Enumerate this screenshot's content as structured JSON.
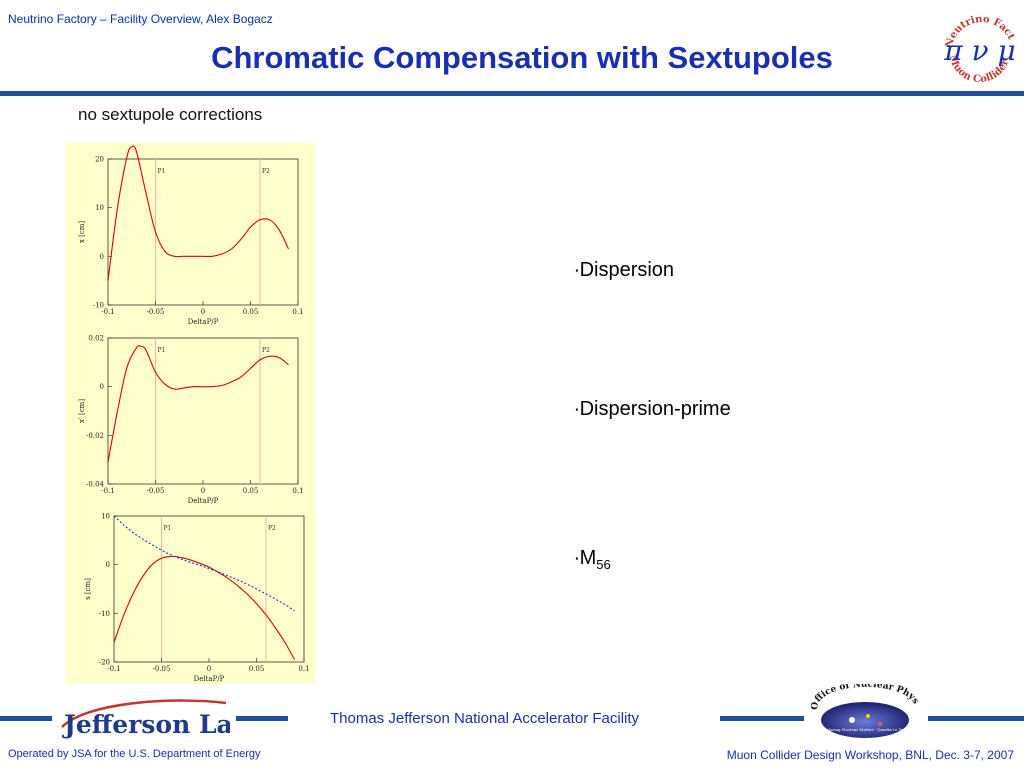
{
  "header": {
    "subtitle": "Neutrino Factory – Facility Overview, Alex Bogacz",
    "title": "Chromatic Compensation with Sextupoles"
  },
  "caption": "no sextupole corrections",
  "plots": [
    {
      "ylabel": "x [cm]",
      "xlabel": "DeltaP/P",
      "xticks": [
        "-0.1",
        "-0.05",
        "0",
        "0.05",
        "0.1"
      ],
      "yticks": [
        "20",
        "10",
        "0",
        "-10"
      ],
      "markers": [
        "P1",
        "P2"
      ]
    },
    {
      "ylabel": "x' [cm]",
      "xlabel": "DeltaP/P",
      "xticks": [
        "-0.1",
        "-0.05",
        "0",
        "0.05",
        "0.1"
      ],
      "yticks": [
        "0.02",
        "0",
        "-0.02",
        "-0.04"
      ],
      "markers": [
        "P1",
        "P2"
      ]
    },
    {
      "ylabel": "s [cm]",
      "xlabel": "DeltaP/P",
      "xticks": [
        "-0.1",
        "-0.05",
        "0",
        "0.05",
        "0.1"
      ],
      "yticks": [
        "10",
        "0",
        "-10",
        "-20"
      ],
      "markers": [
        "P1",
        "P2"
      ]
    }
  ],
  "bullets": {
    "dispersion": "Dispersion",
    "dispersion_prime": "Dispersion-prime",
    "m56_main": "M",
    "m56_sub": "56"
  },
  "logos": {
    "nf_top": "Neutrino Factory",
    "nf_bottom": "Muon Collider",
    "nf_symbols": "π ν μ",
    "jlab": "Jefferson Lab",
    "onp": "Office of Nuclear Physics",
    "onp_tag": "Exploring Nuclear Matter - Quarks to Stars"
  },
  "footer": {
    "center": "Thomas Jefferson National Accelerator Facility",
    "left": "Operated by JSA for the U.S. Department of Energy",
    "right": "Muon Collider Design Workshop, BNL, Dec. 3-7, 2007"
  },
  "colors": {
    "title": "#1a2fb0",
    "rule": "#1f4f9a",
    "curve": "#dd0000",
    "panel_bg": "#ffffcc"
  },
  "chart_data": [
    {
      "type": "line",
      "xlabel": "DeltaP/P",
      "ylabel": "x [cm]",
      "xlim": [
        -0.1,
        0.1
      ],
      "ylim": [
        -10,
        20
      ],
      "x": [
        -0.1,
        -0.09,
        -0.08,
        -0.075,
        -0.07,
        -0.06,
        -0.05,
        -0.04,
        -0.03,
        -0.02,
        -0.01,
        0.0,
        0.01,
        0.02,
        0.03,
        0.04,
        0.05,
        0.06,
        0.07,
        0.08,
        0.09
      ],
      "series": [
        {
          "values": [
            -5,
            10,
            20.5,
            22.5,
            21.5,
            13,
            5,
            1,
            0,
            0,
            0,
            0,
            0,
            0.5,
            1.5,
            3.5,
            6,
            7.5,
            7.5,
            5.5,
            1.5
          ]
        }
      ],
      "vlines": [
        {
          "label": "P1",
          "x": -0.05
        },
        {
          "label": "P2",
          "x": 0.06
        }
      ]
    },
    {
      "type": "line",
      "xlabel": "DeltaP/P",
      "ylabel": "x' [cm]",
      "xlim": [
        -0.1,
        0.1
      ],
      "ylim": [
        -0.04,
        0.02
      ],
      "x": [
        -0.1,
        -0.09,
        -0.08,
        -0.07,
        -0.065,
        -0.06,
        -0.05,
        -0.04,
        -0.03,
        -0.02,
        -0.01,
        0.0,
        0.01,
        0.02,
        0.03,
        0.04,
        0.05,
        0.06,
        0.07,
        0.08,
        0.09
      ],
      "series": [
        {
          "values": [
            -0.031,
            -0.01,
            0.008,
            0.016,
            0.0165,
            0.015,
            0.006,
            0.001,
            -0.001,
            -0.0005,
            0,
            0,
            0,
            0.0005,
            0.002,
            0.004,
            0.0075,
            0.011,
            0.0125,
            0.012,
            0.009
          ]
        }
      ],
      "vlines": [
        {
          "label": "P1",
          "x": -0.05
        },
        {
          "label": "P2",
          "x": 0.06
        }
      ]
    },
    {
      "type": "line",
      "xlabel": "DeltaP/P",
      "ylabel": "s [cm]",
      "xlim": [
        -0.1,
        0.1
      ],
      "ylim": [
        -20,
        10
      ],
      "x": [
        -0.1,
        -0.09,
        -0.08,
        -0.07,
        -0.06,
        -0.05,
        -0.04,
        -0.03,
        -0.02,
        -0.01,
        0.0,
        0.01,
        0.02,
        0.03,
        0.04,
        0.05,
        0.06,
        0.07,
        0.08,
        0.09
      ],
      "series": [
        {
          "values": [
            -16,
            -10.5,
            -6,
            -2.5,
            0,
            1.3,
            1.7,
            1.5,
            1.0,
            0.3,
            -0.5,
            -1.6,
            -2.8,
            -4.3,
            -6,
            -8,
            -10.3,
            -13,
            -16,
            -19.5
          ]
        },
        {
          "values": [
            10,
            8.2,
            6.6,
            5.3,
            4.1,
            3.0,
            2.0,
            1.2,
            0.5,
            -0.1,
            -0.8,
            -1.5,
            -2.3,
            -3.1,
            -4.0,
            -5.0,
            -6.0,
            -7.1,
            -8.2,
            -9.5
          ]
        }
      ],
      "vlines": [
        {
          "label": "P1",
          "x": -0.05
        },
        {
          "label": "P2",
          "x": 0.06
        }
      ]
    }
  ]
}
